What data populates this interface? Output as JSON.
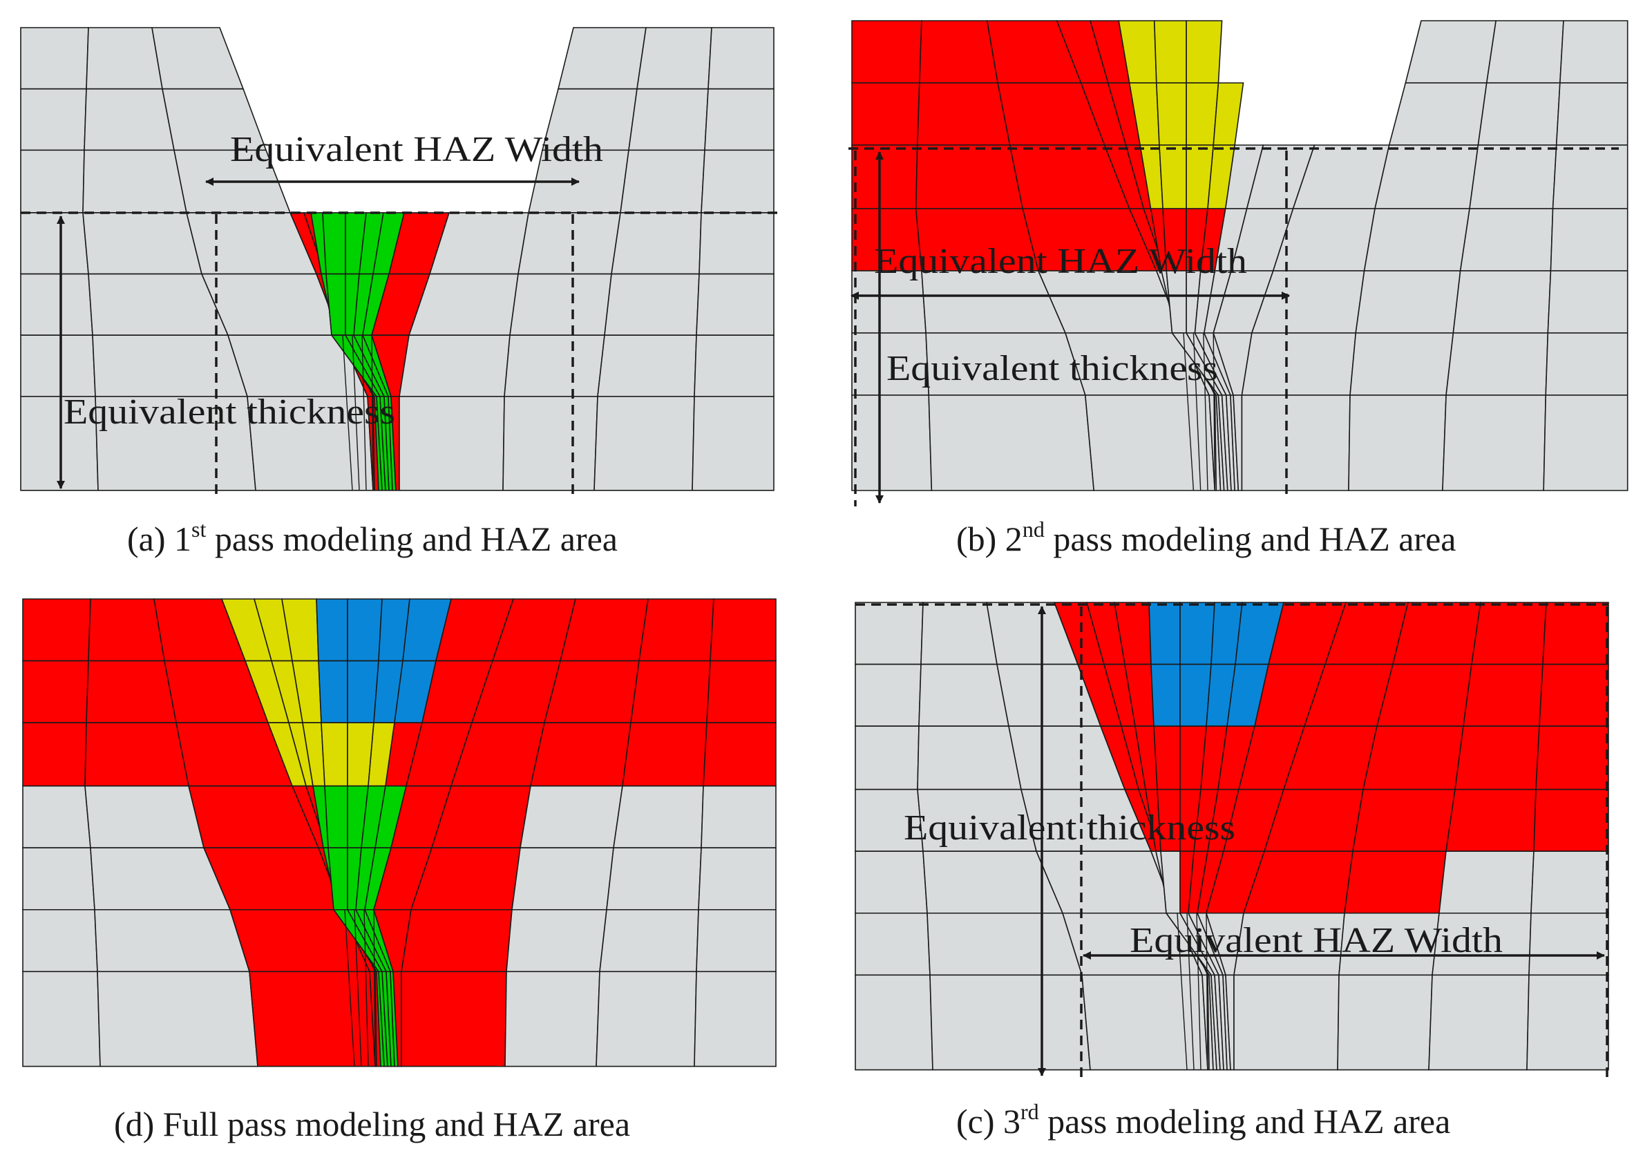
{
  "colors": {
    "base": "#d9dcdc",
    "haz": "#ff0000",
    "pass1": "#00d200",
    "pass2": "#dcdc00",
    "pass3": "#0a86d8",
    "mesh": "#1a1a1a"
  },
  "labels": {
    "haz_width": "Equivalent HAZ Width",
    "thickness": "Equivalent thickness"
  },
  "panels": [
    {
      "id": "a",
      "caption_pre": "(a) 1",
      "caption_sup": "st",
      "caption_post": " pass modeling and HAZ area"
    },
    {
      "id": "b",
      "caption_pre": "(b) 2",
      "caption_sup": "nd",
      "caption_post": " pass modeling and HAZ area"
    },
    {
      "id": "d",
      "caption_pre": "(d) Full pass modeling and HAZ area",
      "caption_sup": "",
      "caption_post": ""
    },
    {
      "id": "c",
      "caption_pre": "(c) 3",
      "caption_sup": "rd",
      "caption_post": " pass modeling and HAZ area"
    }
  ]
}
